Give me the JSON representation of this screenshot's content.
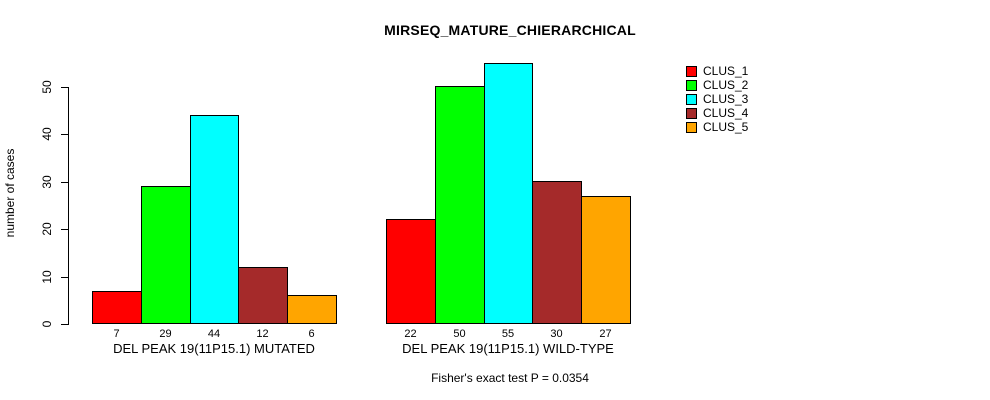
{
  "figure": {
    "title": "MIRSEQ_MATURE_CHIERARCHICAL",
    "y_axis_label": "number of cases",
    "footnote": "Fisher's exact test P = 0.0354"
  },
  "chart_data": {
    "type": "bar",
    "title": "MIRSEQ_MATURE_CHIERARCHICAL",
    "xlabel": "",
    "ylabel": "number of cases",
    "categories": [
      "DEL PEAK 19(11P15.1) MUTATED",
      "DEL PEAK 19(11P15.1) WILD-TYPE"
    ],
    "series": [
      {
        "name": "CLUS_1",
        "color": "#FF0000",
        "values": [
          7,
          22
        ]
      },
      {
        "name": "CLUS_2",
        "color": "#00FF00",
        "values": [
          29,
          50
        ]
      },
      {
        "name": "CLUS_3",
        "color": "#00FFFF",
        "values": [
          44,
          55
        ]
      },
      {
        "name": "CLUS_4",
        "color": "#A52A2A",
        "values": [
          12,
          30
        ]
      },
      {
        "name": "CLUS_5",
        "color": "#FFA500",
        "values": [
          6,
          27
        ]
      }
    ],
    "yticks": [
      0,
      10,
      20,
      30,
      40,
      50
    ],
    "ylim": [
      0,
      55
    ],
    "grid": false,
    "legend_position": "top-right",
    "bar_value_labels_shown": true,
    "annotation": "Fisher's exact test P = 0.0354"
  }
}
